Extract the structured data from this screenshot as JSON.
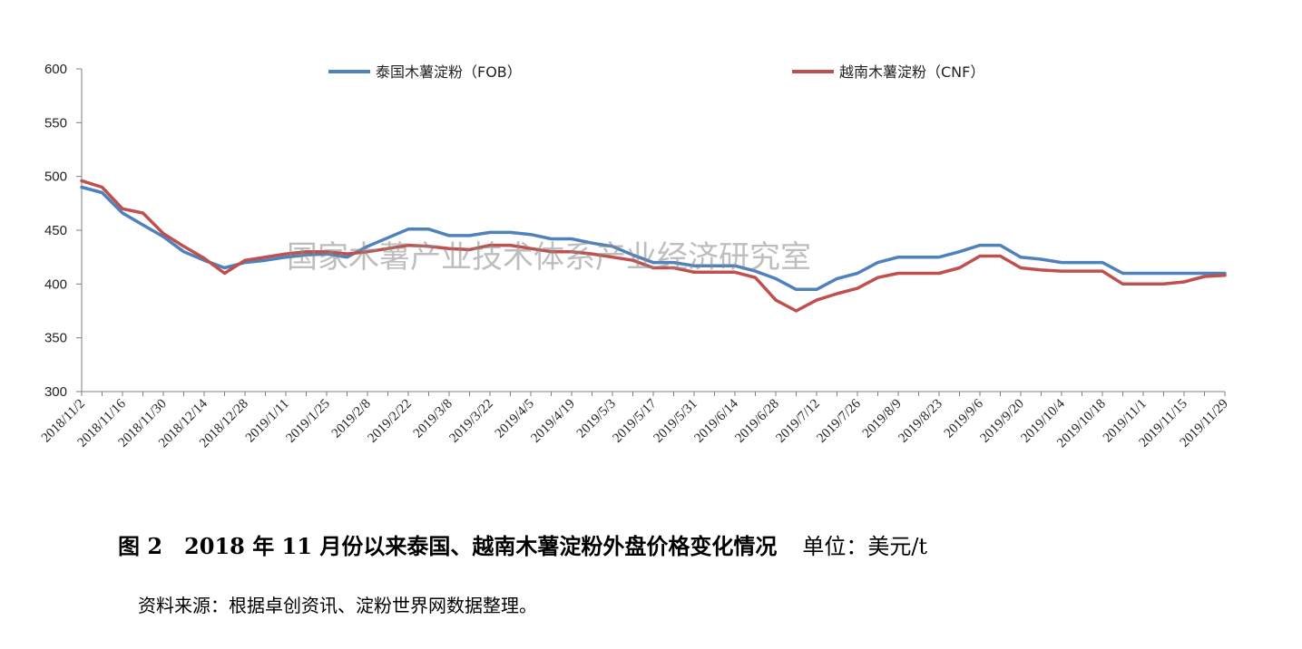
{
  "chart_data": {
    "type": "line",
    "x": [
      "2018/11/2",
      "2018/11/9",
      "2018/11/16",
      "2018/11/23",
      "2018/11/30",
      "2018/12/7",
      "2018/12/14",
      "2018/12/21",
      "2018/12/28",
      "2019/1/4",
      "2019/1/11",
      "2019/1/18",
      "2019/1/25",
      "2019/2/1",
      "2019/2/8",
      "2019/2/15",
      "2019/2/22",
      "2019/3/1",
      "2019/3/8",
      "2019/3/15",
      "2019/3/22",
      "2019/3/29",
      "2019/4/5",
      "2019/4/12",
      "2019/4/19",
      "2019/4/26",
      "2019/5/3",
      "2019/5/10",
      "2019/5/17",
      "2019/5/24",
      "2019/5/31",
      "2019/6/7",
      "2019/6/14",
      "2019/6/21",
      "2019/6/28",
      "2019/7/5",
      "2019/7/12",
      "2019/7/19",
      "2019/7/26",
      "2019/8/2",
      "2019/8/9",
      "2019/8/16",
      "2019/8/23",
      "2019/8/30",
      "2019/9/6",
      "2019/9/13",
      "2019/9/20",
      "2019/9/27",
      "2019/10/4",
      "2019/10/11",
      "2019/10/18",
      "2019/10/25",
      "2019/11/1",
      "2019/11/8",
      "2019/11/15",
      "2019/11/22",
      "2019/11/29"
    ],
    "x_tick_labels": [
      "2018/11/2",
      "2018/11/16",
      "2018/11/30",
      "2018/12/14",
      "2018/12/28",
      "2019/1/11",
      "2019/1/25",
      "2019/2/8",
      "2019/2/22",
      "2019/3/8",
      "2019/3/22",
      "2019/4/5",
      "2019/4/19",
      "2019/5/3",
      "2019/5/17",
      "2019/5/31",
      "2019/6/14",
      "2019/6/28",
      "2019/7/12",
      "2019/7/26",
      "2019/8/9",
      "2019/8/23",
      "2019/9/6",
      "2019/9/20",
      "2019/10/4",
      "2019/10/18",
      "2019/11/1",
      "2019/11/15",
      "2019/11/29"
    ],
    "series": [
      {
        "name": "泰国木薯淀粉（FOB）",
        "color": "#4f81bd",
        "values": [
          490,
          485,
          466,
          455,
          444,
          430,
          422,
          415,
          420,
          422,
          425,
          427,
          428,
          425,
          435,
          443,
          451,
          451,
          445,
          445,
          448,
          448,
          446,
          442,
          442,
          438,
          435,
          427,
          420,
          420,
          417,
          417,
          417,
          412,
          405,
          395,
          395,
          405,
          410,
          420,
          425,
          425,
          425,
          430,
          436,
          436,
          425,
          423,
          420,
          420,
          420,
          410,
          410,
          410,
          410,
          410,
          410
        ]
      },
      {
        "name": "越南木薯淀粉（CNF）",
        "color": "#c0504d",
        "values": [
          496,
          490,
          470,
          466,
          447,
          435,
          424,
          410,
          422,
          425,
          428,
          430,
          430,
          428,
          430,
          433,
          436,
          435,
          433,
          432,
          436,
          436,
          433,
          430,
          430,
          428,
          425,
          422,
          415,
          415,
          411,
          411,
          411,
          406,
          385,
          375,
          385,
          391,
          396,
          406,
          410,
          410,
          410,
          415,
          426,
          426,
          415,
          413,
          412,
          412,
          412,
          400,
          400,
          400,
          402,
          407,
          408
        ]
      }
    ],
    "ylim": [
      300,
      600
    ],
    "y_ticks": [
      300,
      350,
      400,
      450,
      500,
      550,
      600
    ],
    "title": "",
    "xlabel": "",
    "ylabel": "",
    "legend_position": "top",
    "grid": false
  },
  "watermark": "国家木薯产业技术体系产业经济研究室",
  "caption": {
    "title": "图 2　2018 年 11 月份以来泰国、越南木薯淀粉外盘价格变化情况",
    "unit": "单位：美元/t"
  },
  "source": "资料来源：根据卓创资讯、淀粉世界网数据整理。"
}
